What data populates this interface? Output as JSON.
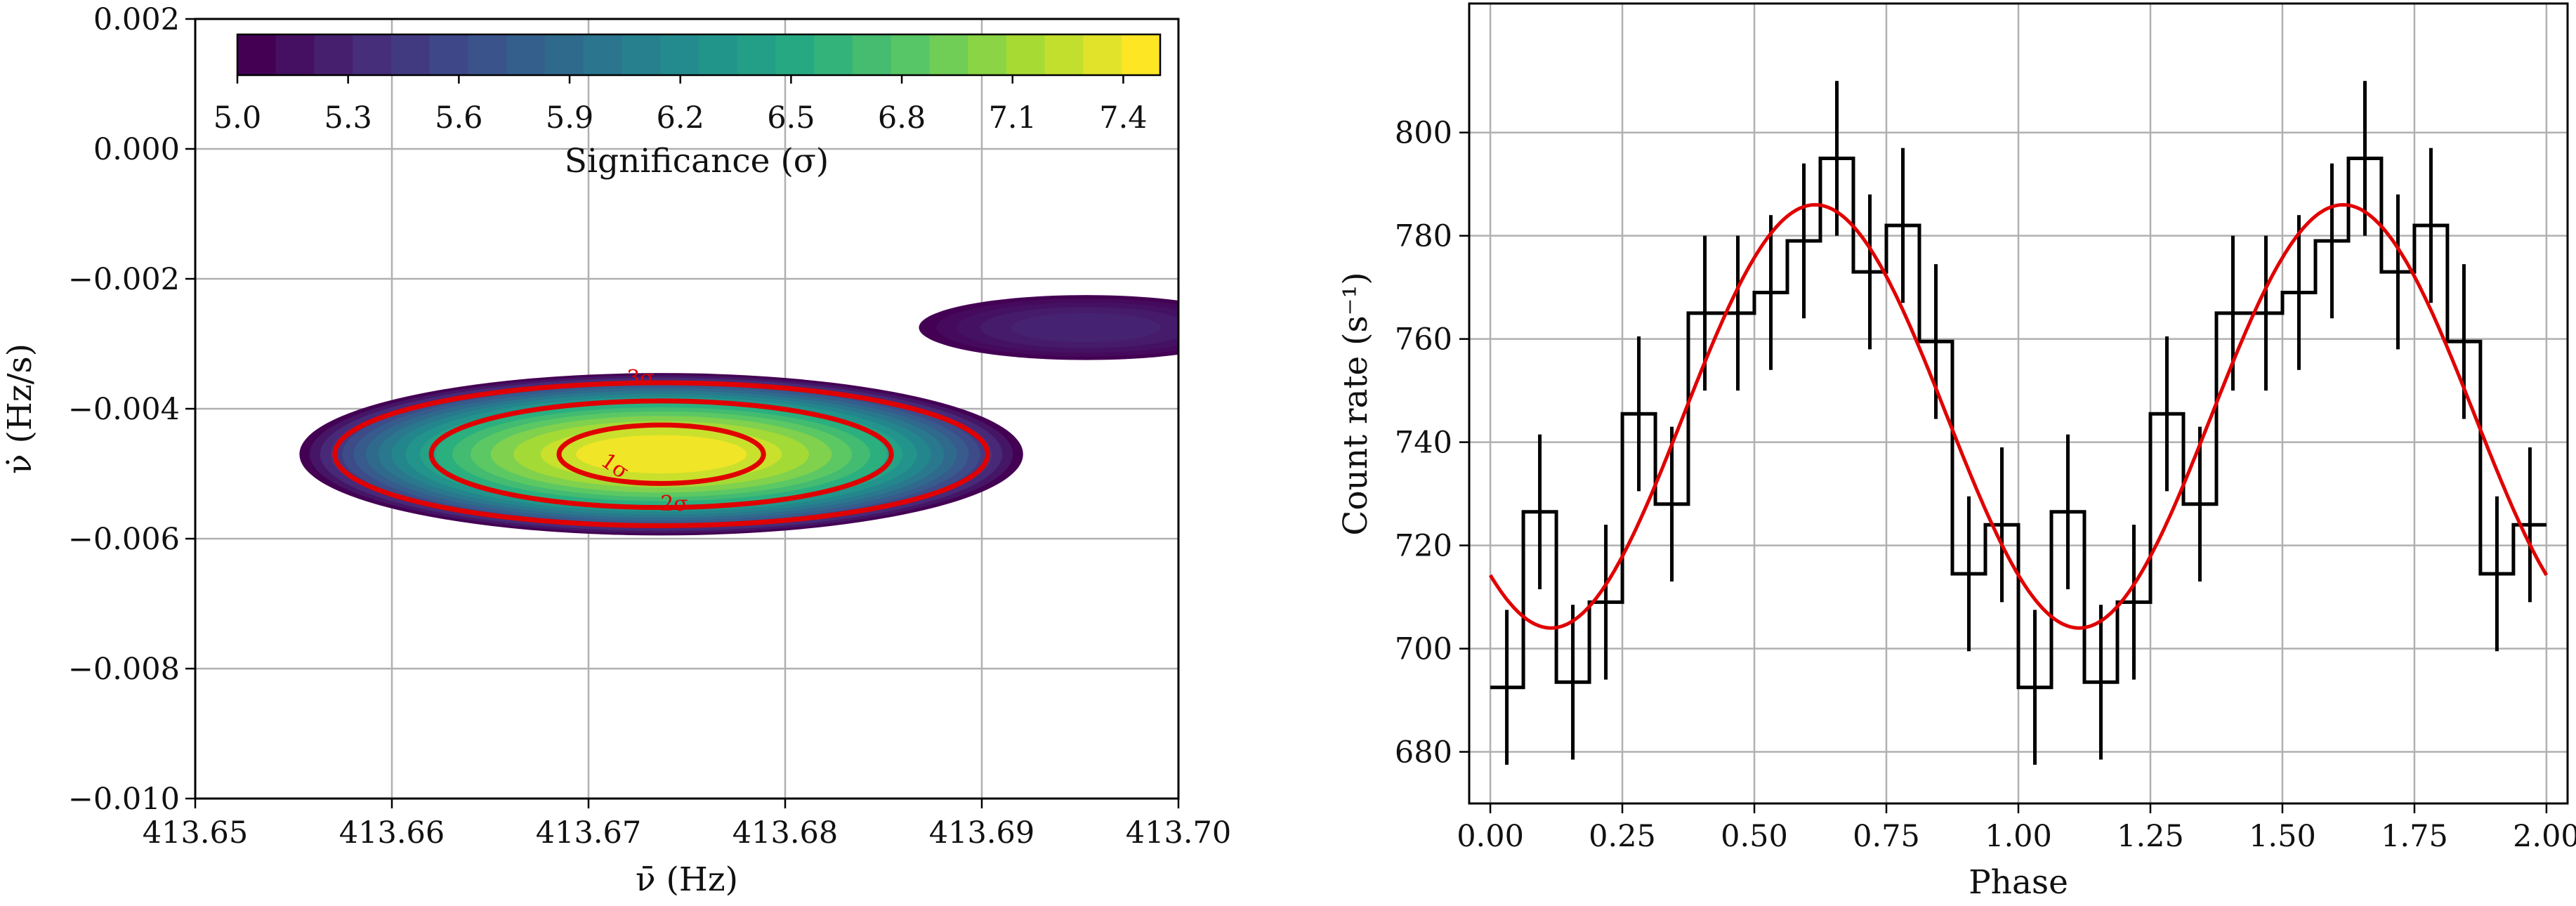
{
  "chart_data": [
    {
      "type": "heatmap",
      "title": "",
      "xlabel": "ν̄ (Hz)",
      "ylabel": "ν̇ (Hz/s)",
      "xlim": [
        413.65,
        413.7
      ],
      "ylim": [
        -0.01,
        0.002
      ],
      "x_ticks": [
        413.65,
        413.66,
        413.67,
        413.68,
        413.69,
        413.7
      ],
      "x_tick_labels": [
        "413.65",
        "413.66",
        "413.67",
        "413.68",
        "413.69",
        "413.70"
      ],
      "y_ticks": [
        0.002,
        0.0,
        -0.002,
        -0.004,
        -0.006,
        -0.008,
        -0.01
      ],
      "y_tick_labels": [
        "0.002",
        "0.000",
        "−0.002",
        "−0.004",
        "−0.006",
        "−0.008",
        "−0.010"
      ],
      "grid": true,
      "colorbar": {
        "label": "Significance (σ)",
        "placement": "top-inside",
        "colormap": "viridis",
        "range": [
          5.0,
          7.5
        ],
        "ticks": [
          5.0,
          5.3,
          5.6,
          5.9,
          6.2,
          6.5,
          6.8,
          7.1,
          7.4
        ],
        "tick_labels": [
          "5.0",
          "5.3",
          "5.6",
          "5.9",
          "6.2",
          "6.5",
          "6.8",
          "7.1",
          "7.4"
        ],
        "levels": 24
      },
      "regions": [
        {
          "center": [
            413.6737,
            -0.0047
          ],
          "half_width": [
            0.0184,
            0.00125
          ],
          "peak": 7.45
        },
        {
          "center": [
            413.6953,
            -0.00275
          ],
          "half_width": [
            0.0085,
            0.0005
          ],
          "peak": 5.25
        }
      ],
      "contours": [
        {
          "label": "1σ",
          "center": [
            413.6737,
            -0.0047
          ],
          "half_width": [
            0.0052,
            0.00045
          ]
        },
        {
          "label": "2σ",
          "center": [
            413.6737,
            -0.0047
          ],
          "half_width": [
            0.0117,
            0.00082
          ]
        },
        {
          "label": "3σ",
          "center": [
            413.6737,
            -0.0047
          ],
          "half_width": [
            0.0166,
            0.0011
          ]
        }
      ],
      "contour_color": "#e00000"
    },
    {
      "type": "line",
      "title": "",
      "xlabel": "Phase",
      "ylabel": "Count rate (s⁻¹)",
      "xlim": [
        -0.04,
        2.04
      ],
      "ylim": [
        670,
        825
      ],
      "x_ticks": [
        0.0,
        0.25,
        0.5,
        0.75,
        1.0,
        1.25,
        1.5,
        1.75,
        2.0
      ],
      "x_tick_labels": [
        "0.00",
        "0.25",
        "0.50",
        "0.75",
        "1.00",
        "1.25",
        "1.50",
        "1.75",
        "2.00"
      ],
      "y_ticks": [
        680,
        700,
        720,
        740,
        760,
        780,
        800
      ],
      "y_tick_labels": [
        "680",
        "700",
        "720",
        "740",
        "760",
        "780",
        "800"
      ],
      "grid": true,
      "series": [
        {
          "kind": "step-with-errorbars",
          "color": "#000000",
          "bin_width": 0.0625,
          "phase": [
            0.03125,
            0.09375,
            0.15625,
            0.21875,
            0.28125,
            0.34375,
            0.40625,
            0.46875,
            0.53125,
            0.59375,
            0.65625,
            0.71875,
            0.78125,
            0.84375,
            0.90625,
            0.96875,
            1.03125,
            1.09375,
            1.15625,
            1.21875,
            1.28125,
            1.34375,
            1.40625,
            1.46875,
            1.53125,
            1.59375,
            1.65625,
            1.71875,
            1.78125,
            1.84375,
            1.90625,
            1.96875
          ],
          "rate": [
            692.5,
            726.5,
            693.5,
            709,
            745.5,
            728,
            765,
            765,
            769,
            779,
            795,
            773,
            782,
            759.5,
            714.5,
            724,
            692.5,
            726.5,
            693.5,
            709,
            745.5,
            728,
            765,
            765,
            769,
            779,
            795,
            773,
            782,
            759.5,
            714.5,
            724
          ],
          "error": [
            15,
            15,
            15,
            15,
            15,
            15,
            15,
            15,
            15,
            15,
            15,
            15,
            15,
            15,
            15,
            15,
            15,
            15,
            15,
            15,
            15,
            15,
            15,
            15,
            15,
            15,
            15,
            15,
            15,
            15,
            15,
            15
          ]
        },
        {
          "kind": "sinusoid-fit",
          "color": "#e00000",
          "mean": 745,
          "amplitude": 41,
          "peak_phase": 0.615
        }
      ]
    }
  ]
}
